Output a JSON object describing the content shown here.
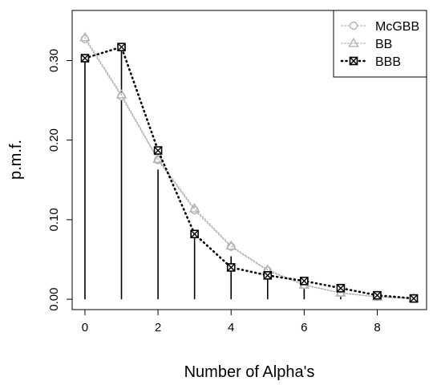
{
  "chart_data": {
    "type": "line",
    "title": "",
    "xlabel": "Number of Alpha's",
    "ylabel": "p.m.f.",
    "xlim": [
      -0.35,
      9.35
    ],
    "ylim": [
      -0.013,
      0.363
    ],
    "xticks": [
      0,
      2,
      4,
      6,
      8
    ],
    "yticks": [
      0.0,
      0.1,
      0.2,
      0.3
    ],
    "ytick_labels": [
      "0.00",
      "0.10",
      "0.20",
      "0.30"
    ],
    "grid": false,
    "legend_position": "top-right",
    "x": [
      0,
      1,
      2,
      3,
      4,
      5,
      6,
      7,
      8,
      9
    ],
    "vertical_lines": {
      "x": [
        0,
        1,
        2,
        3,
        4,
        5,
        6,
        7,
        8,
        9
      ],
      "y": [
        0.303,
        0.317,
        0.163,
        0.081,
        0.054,
        0.033,
        0.022,
        0.01,
        0.005,
        0.001
      ],
      "color": "#000000"
    },
    "series": [
      {
        "name": "McGBB",
        "values": [
          0.327,
          0.255,
          0.175,
          0.112,
          0.066,
          0.036,
          0.018,
          0.008,
          0.003,
          0.001
        ],
        "color": "#b3b3b3",
        "line_style": "dotted",
        "marker": "circle"
      },
      {
        "name": "BB",
        "values": [
          0.329,
          0.257,
          0.176,
          0.114,
          0.067,
          0.037,
          0.018,
          0.008,
          0.003,
          0.001
        ],
        "color": "#b3b3b3",
        "line_style": "dotted",
        "marker": "triangle"
      },
      {
        "name": "BBB",
        "values": [
          0.303,
          0.317,
          0.187,
          0.082,
          0.04,
          0.03,
          0.023,
          0.014,
          0.005,
          0.001
        ],
        "color": "#000000",
        "line_style": "dotted",
        "marker": "boxed-x"
      }
    ]
  }
}
